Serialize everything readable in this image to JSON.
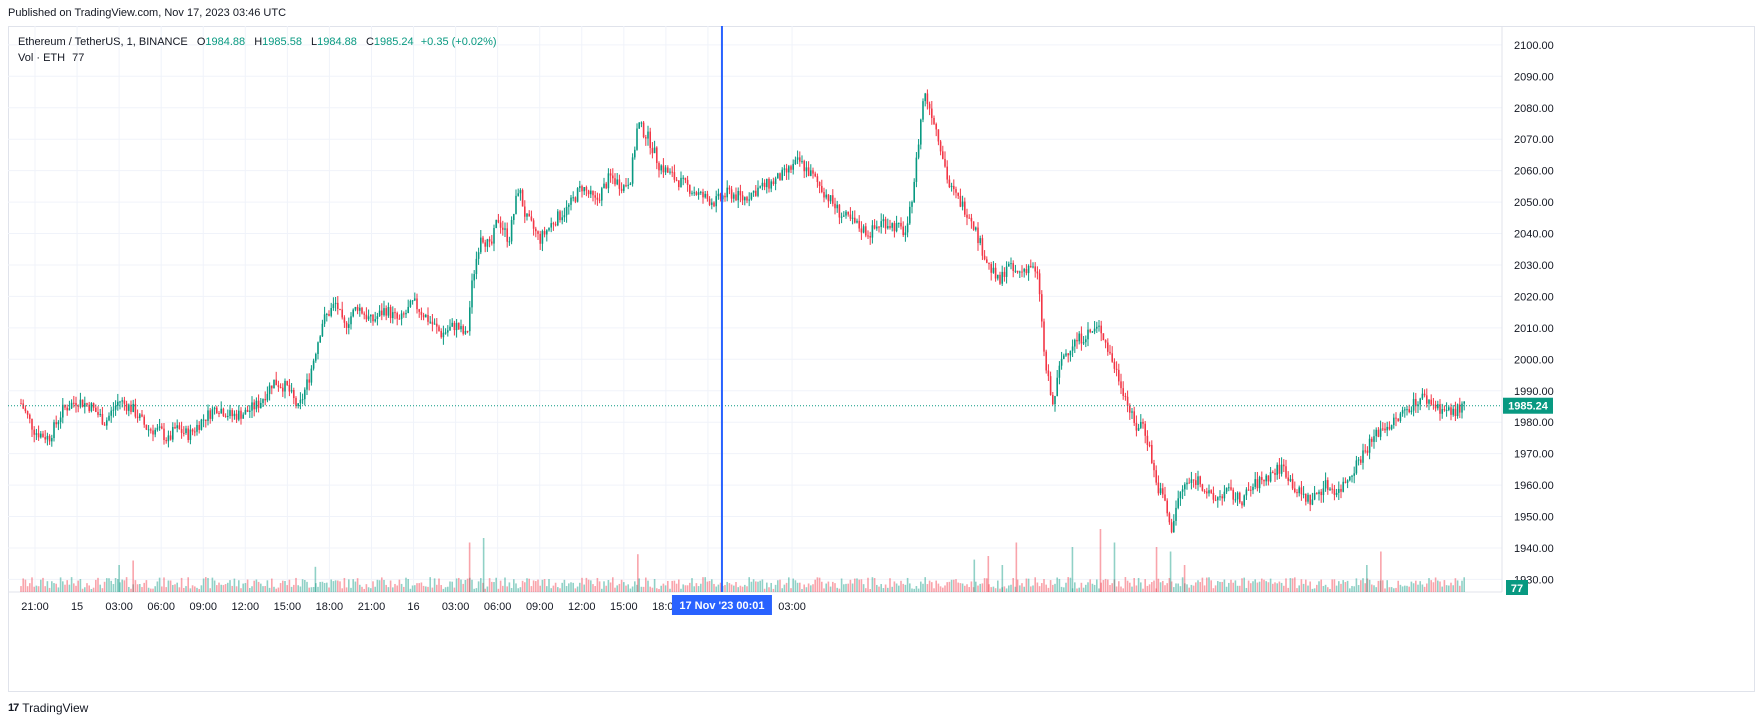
{
  "published": "Published on TradingView.com, Nov 17, 2023 03:46 UTC",
  "legend": {
    "symbol": "Ethereum / TetherUS, 1, BINANCE",
    "o_label": "O",
    "o_value": "1984.88",
    "h_label": "H",
    "h_value": "1985.58",
    "l_label": "L",
    "l_value": "1984.88",
    "c_label": "C",
    "c_value": "1985.24",
    "change": "+0.35 (+0.02%)",
    "vol_label": "Vol · ETH",
    "vol_value": "77"
  },
  "footer": {
    "logo": "17",
    "brand": "TradingView"
  },
  "colors": {
    "up": "#089981",
    "down": "#f23645",
    "crosshair": "#2962ff",
    "grid": "#f0f3fa"
  },
  "chart_data": {
    "type": "candlestick",
    "price_axis": {
      "ticks": [
        2100,
        2090,
        2080,
        2070,
        2060,
        2050,
        2040,
        2030,
        2020,
        2010,
        2000,
        1990,
        1980,
        1970,
        1960,
        1950,
        1940,
        1930
      ],
      "range": [
        1926,
        2106
      ]
    },
    "time_axis": {
      "ticks": [
        "21:00",
        "15",
        "03:00",
        "06:00",
        "09:00",
        "12:00",
        "15:00",
        "18:00",
        "21:00",
        "16",
        "03:00",
        "06:00",
        "09:00",
        "12:00",
        "15:00",
        "18:00",
        "21:00",
        "03:00"
      ]
    },
    "last_price": "1985.24",
    "last_volume": "77",
    "crosshair_label": "17 Nov '23   00:01",
    "price_path": [
      [
        20.0,
        1986
      ],
      [
        21.0,
        1977
      ],
      [
        22.0,
        1975
      ],
      [
        23.0,
        1984
      ],
      [
        24.0,
        1987
      ],
      [
        25.0,
        1985
      ],
      [
        26.0,
        1980
      ],
      [
        27.0,
        1987
      ],
      [
        28.0,
        1984
      ],
      [
        29.0,
        1978
      ],
      [
        30.0,
        1977
      ],
      [
        30.5,
        1974
      ],
      [
        31.0,
        1978
      ],
      [
        32.0,
        1976
      ],
      [
        33.0,
        1981
      ],
      [
        34.0,
        1985
      ],
      [
        35.0,
        1982
      ],
      [
        36.0,
        1983
      ],
      [
        37.0,
        1986
      ],
      [
        38.0,
        1993
      ],
      [
        39.0,
        1991
      ],
      [
        39.8,
        1984
      ],
      [
        40.6,
        1995
      ],
      [
        41.5,
        2012
      ],
      [
        42.0,
        2015
      ],
      [
        42.5,
        2018
      ],
      [
        43.0,
        2010
      ],
      [
        44.0,
        2017
      ],
      [
        45.0,
        2012
      ],
      [
        46.0,
        2016
      ],
      [
        47.0,
        2012
      ],
      [
        48.0,
        2018
      ],
      [
        49.0,
        2013
      ],
      [
        50.0,
        2008
      ],
      [
        51.0,
        2011
      ],
      [
        51.8,
        2007
      ],
      [
        52.2,
        2025
      ],
      [
        52.8,
        2040
      ],
      [
        53.5,
        2035
      ],
      [
        54.0,
        2045
      ],
      [
        54.8,
        2038
      ],
      [
        55.5,
        2055
      ],
      [
        56.0,
        2045
      ],
      [
        56.5,
        2042
      ],
      [
        57.0,
        2038
      ],
      [
        58.0,
        2044
      ],
      [
        59.0,
        2048
      ],
      [
        60.0,
        2055
      ],
      [
        61.0,
        2050
      ],
      [
        62.0,
        2058
      ],
      [
        63.0,
        2055
      ],
      [
        63.5,
        2058
      ],
      [
        64.0,
        2075
      ],
      [
        64.8,
        2070
      ],
      [
        65.5,
        2062
      ],
      [
        66.5,
        2058
      ],
      [
        67.5,
        2055
      ],
      [
        68.5,
        2052
      ],
      [
        69.5,
        2050
      ],
      [
        70.5,
        2053
      ],
      [
        71.5,
        2051
      ],
      [
        72.5,
        2054
      ],
      [
        73.5,
        2056
      ],
      [
        74.5,
        2059
      ],
      [
        75.5,
        2063
      ],
      [
        76.5,
        2058
      ],
      [
        77.5,
        2052
      ],
      [
        78.5,
        2046
      ],
      [
        79.5,
        2043
      ],
      [
        80.5,
        2040
      ],
      [
        81.5,
        2044
      ],
      [
        82.5,
        2042
      ],
      [
        83.2,
        2040
      ],
      [
        83.8,
        2060
      ],
      [
        84.4,
        2085
      ],
      [
        85.0,
        2078
      ],
      [
        85.6,
        2068
      ],
      [
        86.2,
        2055
      ],
      [
        87.0,
        2050
      ],
      [
        87.8,
        2045
      ],
      [
        88.4,
        2037
      ],
      [
        89.0,
        2030
      ],
      [
        89.8,
        2024
      ],
      [
        90.3,
        2030
      ],
      [
        91.0,
        2027
      ],
      [
        92.0,
        2030
      ],
      [
        92.6,
        2025
      ],
      [
        93.0,
        2000
      ],
      [
        93.6,
        1985
      ],
      [
        94.2,
        2000
      ],
      [
        95.0,
        2005
      ],
      [
        96.0,
        2008
      ],
      [
        97.0,
        2010
      ],
      [
        97.8,
        2000
      ],
      [
        98.5,
        1992
      ],
      [
        99.0,
        1985
      ],
      [
        99.5,
        1978
      ],
      [
        100.0,
        1980
      ],
      [
        100.5,
        1972
      ],
      [
        101.0,
        1960
      ],
      [
        101.6,
        1955
      ],
      [
        102.0,
        1945
      ],
      [
        102.5,
        1955
      ],
      [
        103.0,
        1960
      ],
      [
        104.0,
        1962
      ],
      [
        105.0,
        1955
      ],
      [
        106.0,
        1958
      ],
      [
        107.0,
        1955
      ],
      [
        108.0,
        1960
      ],
      [
        109.0,
        1963
      ],
      [
        110.0,
        1966
      ],
      [
        111.0,
        1958
      ],
      [
        112.0,
        1955
      ],
      [
        113.0,
        1960
      ],
      [
        114.0,
        1958
      ],
      [
        115.0,
        1965
      ],
      [
        116.0,
        1972
      ],
      [
        117.0,
        1978
      ],
      [
        118.0,
        1980
      ],
      [
        119.0,
        1985
      ],
      [
        120.0,
        1988
      ],
      [
        121.0,
        1985
      ],
      [
        122.0,
        1983
      ],
      [
        123.0,
        1985
      ]
    ],
    "volume_spikes": [
      [
        5,
        0.35
      ],
      [
        13,
        0.28
      ],
      [
        19,
        0.45
      ],
      [
        27,
        0.3
      ],
      [
        28,
        0.35
      ],
      [
        41,
        0.28
      ],
      [
        52,
        0.55
      ],
      [
        53,
        0.6
      ],
      [
        64,
        0.42
      ],
      [
        88,
        0.36
      ],
      [
        89,
        0.4
      ],
      [
        90,
        0.3
      ],
      [
        91,
        0.55
      ],
      [
        95,
        0.5
      ],
      [
        97,
        0.7
      ],
      [
        98,
        0.55
      ],
      [
        101,
        0.5
      ],
      [
        102,
        0.45
      ],
      [
        103,
        0.3
      ],
      [
        116,
        0.3
      ],
      [
        117,
        0.45
      ]
    ]
  }
}
